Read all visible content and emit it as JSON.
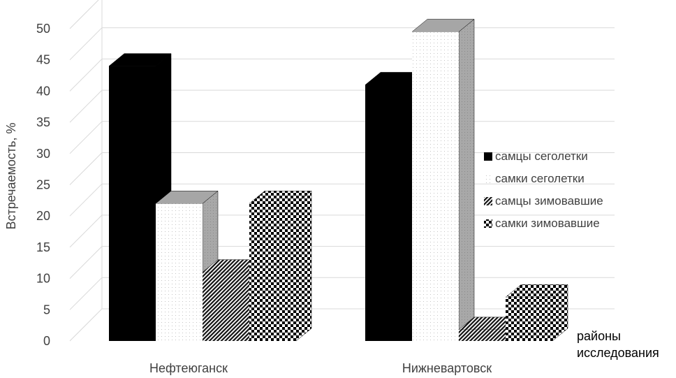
{
  "chart_data": {
    "type": "bar",
    "style": "3d-clustered-column",
    "title": "",
    "ylabel": "Встречаемость, %",
    "xlabel": "районы исследования",
    "xlabel_lines": [
      "районы",
      "исследования"
    ],
    "ylim": [
      0,
      50
    ],
    "yticks": [
      0,
      5,
      10,
      15,
      20,
      25,
      30,
      35,
      40,
      45,
      50
    ],
    "grid": true,
    "legend_position": "right",
    "categories": [
      "Нефтеюганск",
      "Нижневартовск"
    ],
    "series": [
      {
        "name": "самцы сеголетки",
        "values": [
          44,
          41
        ],
        "pattern": "solid-black"
      },
      {
        "name": "самки сеголетки",
        "values": [
          22,
          49.5
        ],
        "pattern": "dotted"
      },
      {
        "name": "самцы зимовавшие",
        "values": [
          11,
          1.8
        ],
        "pattern": "diagonal-stripes"
      },
      {
        "name": "самки зимовавшие",
        "values": [
          22,
          7
        ],
        "pattern": "checkerboard"
      }
    ]
  }
}
